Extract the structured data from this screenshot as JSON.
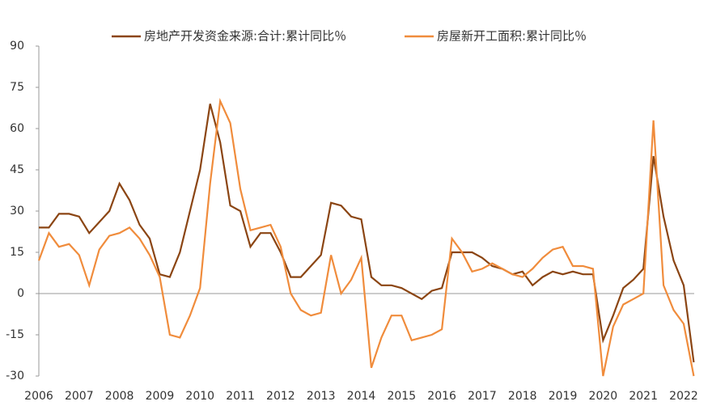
{
  "chart_data": {
    "type": "line",
    "categories": [
      "2006",
      null,
      null,
      null,
      "2007",
      null,
      null,
      null,
      "2008",
      null,
      null,
      null,
      "2009",
      null,
      null,
      null,
      "2010",
      null,
      null,
      null,
      "2011",
      null,
      null,
      null,
      "2012",
      null,
      null,
      null,
      "2013",
      null,
      null,
      null,
      "2014",
      null,
      null,
      null,
      "2015",
      null,
      null,
      null,
      "2016",
      null,
      null,
      null,
      "2017",
      null,
      null,
      null,
      "2018",
      null,
      null,
      null,
      "2019",
      null,
      null,
      null,
      "2020",
      null,
      null,
      null,
      "2021",
      null,
      null,
      null,
      "2022",
      null
    ],
    "series": [
      {
        "name": "房地产开发资金来源:合计:累计同比％",
        "color": "#8b4513",
        "values": [
          24,
          24,
          29,
          29,
          28,
          22,
          26,
          30,
          40,
          34,
          25,
          20,
          7,
          6,
          15,
          30,
          45,
          69,
          55,
          32,
          30,
          17,
          22,
          22,
          15,
          6,
          6,
          10,
          14,
          33,
          32,
          28,
          27,
          6,
          3,
          3,
          2,
          0,
          -2,
          1,
          2,
          15,
          15,
          15,
          13,
          10,
          9,
          7,
          8,
          3,
          6,
          8,
          7,
          8,
          7,
          7,
          -17,
          -8,
          2,
          5,
          9,
          50,
          28,
          12,
          3,
          -25
        ]
      },
      {
        "name": "房屋新开工面积:累计同比％",
        "color": "#f08c3c",
        "values": [
          12,
          22,
          17,
          18,
          14,
          3,
          16,
          21,
          22,
          24,
          20,
          14,
          6,
          -15,
          -16,
          -8,
          2,
          40,
          70,
          62,
          38,
          23,
          24,
          25,
          17,
          0,
          -6,
          -8,
          -7,
          14,
          0,
          5,
          13,
          -27,
          -16,
          -8,
          -8,
          -17,
          -16,
          -15,
          -13,
          20,
          15,
          8,
          9,
          11,
          9,
          7,
          6,
          9,
          13,
          16,
          17,
          10,
          10,
          9,
          -30,
          -12,
          -4,
          -2,
          0,
          63,
          3,
          -6,
          -11,
          -30
        ]
      }
    ],
    "ylim": [
      -30,
      90
    ],
    "yticks": [
      -30,
      -15,
      0,
      15,
      30,
      45,
      60,
      75,
      90
    ],
    "zero_line": true
  }
}
